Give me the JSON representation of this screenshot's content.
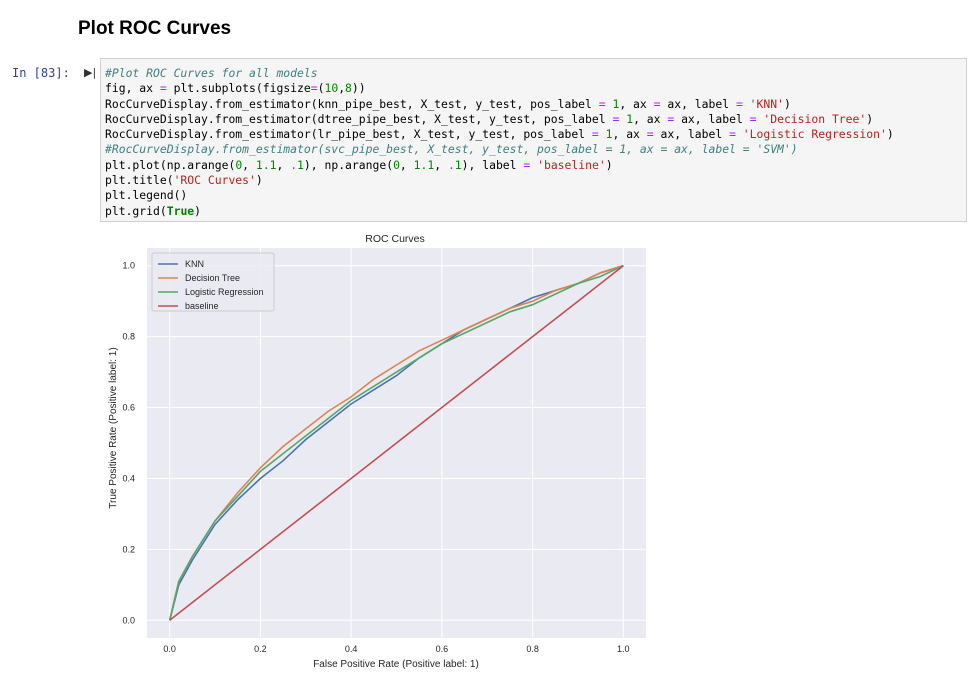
{
  "notebook": {
    "heading": "Plot ROC Curves",
    "prompt": "In [83]:",
    "code_lines": [
      [
        {
          "c": "cm",
          "t": "#Plot ROC Curves for all models"
        }
      ],
      [
        {
          "c": "",
          "t": "fig, ax "
        },
        {
          "c": "op",
          "t": "="
        },
        {
          "c": "",
          "t": " plt.subplots(figsize"
        },
        {
          "c": "op",
          "t": "="
        },
        {
          "c": "",
          "t": "("
        },
        {
          "c": "nm",
          "t": "10"
        },
        {
          "c": "",
          "t": ","
        },
        {
          "c": "nm",
          "t": "8"
        },
        {
          "c": "",
          "t": "))"
        }
      ],
      [
        {
          "c": "",
          "t": "RocCurveDisplay.from_estimator(knn_pipe_best, X_test, y_test, pos_label "
        },
        {
          "c": "op",
          "t": "="
        },
        {
          "c": "",
          "t": " "
        },
        {
          "c": "nm",
          "t": "1"
        },
        {
          "c": "",
          "t": ", ax "
        },
        {
          "c": "op",
          "t": "="
        },
        {
          "c": "",
          "t": " ax, label "
        },
        {
          "c": "op",
          "t": "="
        },
        {
          "c": "",
          "t": " "
        },
        {
          "c": "st",
          "t": "'KNN'"
        },
        {
          "c": "",
          "t": ")"
        }
      ],
      [
        {
          "c": "",
          "t": "RocCurveDisplay.from_estimator(dtree_pipe_best, X_test, y_test, pos_label "
        },
        {
          "c": "op",
          "t": "="
        },
        {
          "c": "",
          "t": " "
        },
        {
          "c": "nm",
          "t": "1"
        },
        {
          "c": "",
          "t": ", ax "
        },
        {
          "c": "op",
          "t": "="
        },
        {
          "c": "",
          "t": " ax, label "
        },
        {
          "c": "op",
          "t": "="
        },
        {
          "c": "",
          "t": " "
        },
        {
          "c": "st",
          "t": "'Decision Tree'"
        },
        {
          "c": "",
          "t": ")"
        }
      ],
      [
        {
          "c": "",
          "t": "RocCurveDisplay.from_estimator(lr_pipe_best, X_test, y_test, pos_label "
        },
        {
          "c": "op",
          "t": "="
        },
        {
          "c": "",
          "t": " "
        },
        {
          "c": "nm",
          "t": "1"
        },
        {
          "c": "",
          "t": ", ax "
        },
        {
          "c": "op",
          "t": "="
        },
        {
          "c": "",
          "t": " ax, label "
        },
        {
          "c": "op",
          "t": "="
        },
        {
          "c": "",
          "t": " "
        },
        {
          "c": "st",
          "t": "'Logistic Regression'"
        },
        {
          "c": "",
          "t": ")"
        }
      ],
      [
        {
          "c": "cm",
          "t": "#RocCurveDisplay.from_estimator(svc_pipe_best, X_test, y_test, pos_label = 1, ax = ax, label = 'SVM')"
        }
      ],
      [
        {
          "c": "",
          "t": "plt.plot(np.arange("
        },
        {
          "c": "nm",
          "t": "0"
        },
        {
          "c": "",
          "t": ", "
        },
        {
          "c": "nm",
          "t": "1.1"
        },
        {
          "c": "",
          "t": ", "
        },
        {
          "c": "op",
          "t": "."
        },
        {
          "c": "nm",
          "t": "1"
        },
        {
          "c": "",
          "t": "), np.arange("
        },
        {
          "c": "nm",
          "t": "0"
        },
        {
          "c": "",
          "t": ", "
        },
        {
          "c": "nm",
          "t": "1.1"
        },
        {
          "c": "",
          "t": ", "
        },
        {
          "c": "op",
          "t": "."
        },
        {
          "c": "nm",
          "t": "1"
        },
        {
          "c": "",
          "t": "), label "
        },
        {
          "c": "op",
          "t": "="
        },
        {
          "c": "",
          "t": " "
        },
        {
          "c": "st",
          "t": "'baseline'"
        },
        {
          "c": "",
          "t": ")"
        }
      ],
      [
        {
          "c": "",
          "t": "plt.title("
        },
        {
          "c": "st",
          "t": "'ROC Curves'"
        },
        {
          "c": "",
          "t": ")"
        }
      ],
      [
        {
          "c": "",
          "t": "plt.legend()"
        }
      ],
      [
        {
          "c": "",
          "t": "plt.grid("
        },
        {
          "c": "kw",
          "t": "True"
        },
        {
          "c": "",
          "t": ")"
        }
      ]
    ]
  },
  "chart_data": {
    "type": "line",
    "title": "ROC Curves",
    "xlabel": "False Positive Rate (Positive label: 1)",
    "ylabel": "True Positive Rate (Positive label: 1)",
    "xlim": [
      -0.05,
      1.05
    ],
    "ylim": [
      -0.05,
      1.05
    ],
    "xticks": [
      "0.0",
      "0.2",
      "0.4",
      "0.6",
      "0.8",
      "1.0"
    ],
    "yticks": [
      "0.0",
      "0.2",
      "0.4",
      "0.6",
      "0.8",
      "1.0"
    ],
    "grid": true,
    "legend_position": "upper-left",
    "colors": {
      "background": "#eaeaf2",
      "grid": "#ffffff"
    },
    "series": [
      {
        "name": "KNN",
        "color": "#4c72b0",
        "x": [
          0,
          0.02,
          0.05,
          0.1,
          0.15,
          0.2,
          0.25,
          0.3,
          0.35,
          0.4,
          0.45,
          0.5,
          0.55,
          0.6,
          0.65,
          0.7,
          0.75,
          0.8,
          0.85,
          0.9,
          0.95,
          1.0
        ],
        "y": [
          0,
          0.1,
          0.17,
          0.27,
          0.34,
          0.4,
          0.45,
          0.51,
          0.56,
          0.61,
          0.65,
          0.69,
          0.74,
          0.78,
          0.82,
          0.85,
          0.88,
          0.91,
          0.93,
          0.95,
          0.98,
          1.0
        ]
      },
      {
        "name": "Decision Tree",
        "color": "#dd8452",
        "x": [
          0,
          0.02,
          0.05,
          0.1,
          0.15,
          0.2,
          0.25,
          0.3,
          0.35,
          0.4,
          0.45,
          0.5,
          0.55,
          0.6,
          0.65,
          0.7,
          0.75,
          0.8,
          0.85,
          0.9,
          0.95,
          1.0
        ],
        "y": [
          0,
          0.11,
          0.18,
          0.28,
          0.36,
          0.43,
          0.49,
          0.54,
          0.59,
          0.63,
          0.68,
          0.72,
          0.76,
          0.79,
          0.82,
          0.85,
          0.88,
          0.9,
          0.93,
          0.95,
          0.98,
          1.0
        ]
      },
      {
        "name": "Logistic Regression",
        "color": "#55a868",
        "x": [
          0,
          0.02,
          0.05,
          0.1,
          0.15,
          0.2,
          0.25,
          0.3,
          0.35,
          0.4,
          0.45,
          0.5,
          0.55,
          0.6,
          0.65,
          0.7,
          0.75,
          0.8,
          0.85,
          0.9,
          0.95,
          1.0
        ],
        "y": [
          0,
          0.11,
          0.18,
          0.28,
          0.35,
          0.42,
          0.47,
          0.52,
          0.57,
          0.62,
          0.66,
          0.7,
          0.74,
          0.78,
          0.81,
          0.84,
          0.87,
          0.89,
          0.92,
          0.95,
          0.97,
          1.0
        ]
      },
      {
        "name": "baseline",
        "color": "#c44e52",
        "x": [
          0,
          0.1,
          0.2,
          0.3,
          0.4,
          0.5,
          0.6,
          0.7,
          0.8,
          0.9,
          1.0
        ],
        "y": [
          0,
          0.1,
          0.2,
          0.3,
          0.4,
          0.5,
          0.6,
          0.7,
          0.8,
          0.9,
          1.0
        ]
      }
    ]
  }
}
